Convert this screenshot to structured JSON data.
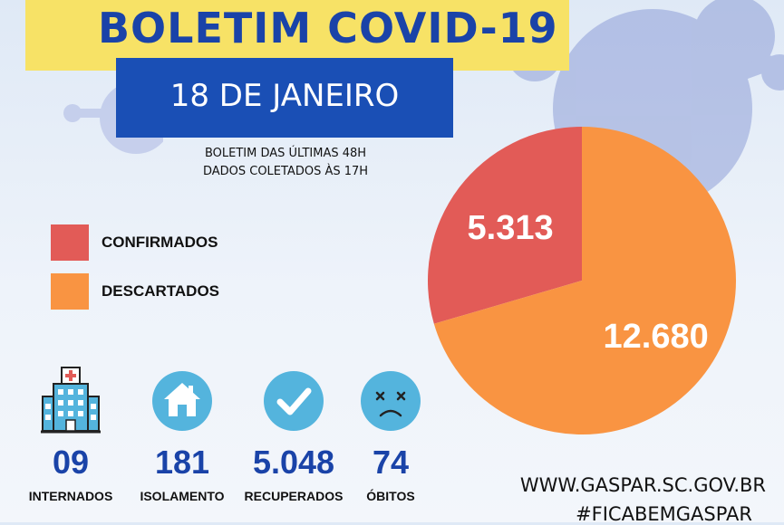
{
  "header": {
    "title": "BOLETIM COVID-19",
    "date": "18 DE JANEIRO",
    "subtitle_line1": "BOLETIM DAS ÚLTIMAS 48H",
    "subtitle_line2": "DADOS COLETADOS ÀS  17H"
  },
  "colors": {
    "title_bg": "#f7e266",
    "title_text": "#1a43a8",
    "date_bg": "#1a4fb5",
    "confirmed": "#e25b57",
    "discarded": "#f99442",
    "icon_circle": "#54b4dd"
  },
  "legend": [
    {
      "label": "CONFIRMADOS",
      "color": "#e25b57"
    },
    {
      "label": "DESCARTADOS",
      "color": "#f99442"
    }
  ],
  "chart_data": {
    "type": "pie",
    "slices": [
      {
        "label": "CONFIRMADOS",
        "value": 5313,
        "display": "5.313",
        "color": "#e25b57"
      },
      {
        "label": "DESCARTADOS",
        "value": 12680,
        "display": "12.680",
        "color": "#f99442"
      }
    ]
  },
  "stats": [
    {
      "icon": "hospital-icon",
      "value": "09",
      "label": "INTERNADOS"
    },
    {
      "icon": "house-icon",
      "value": "181",
      "label": "ISOLAMENTO"
    },
    {
      "icon": "checkmark-icon",
      "value": "5.048",
      "label": "RECUPERADOS"
    },
    {
      "icon": "sad-face-icon",
      "value": "74",
      "label": "ÓBITOS"
    }
  ],
  "footer": {
    "url": "WWW.GASPAR.SC.GOV.BR",
    "hashtag": "#FICABEMGASPAR"
  }
}
